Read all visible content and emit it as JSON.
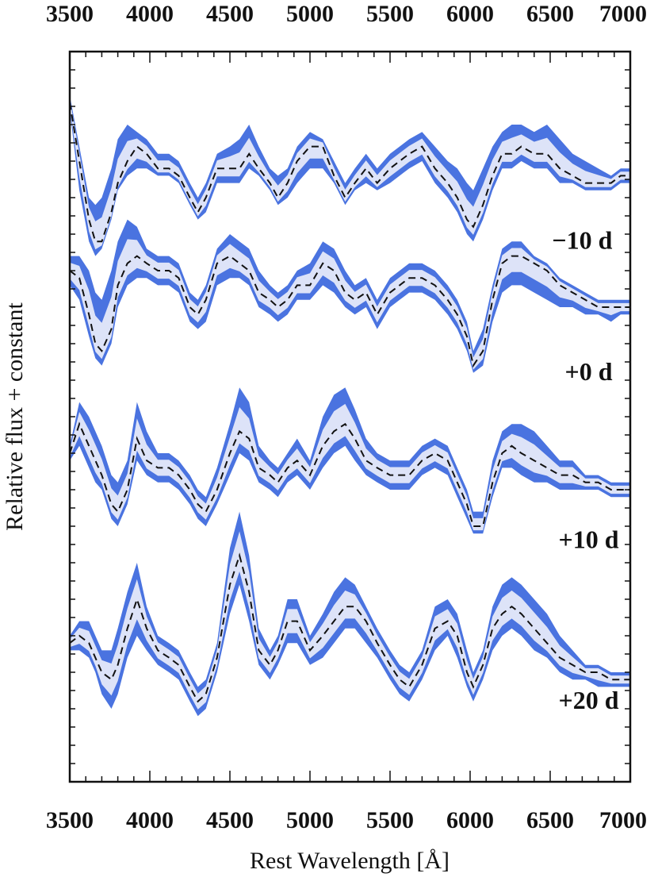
{
  "chart_data": {
    "type": "line",
    "xlabel": "Rest Wavelength  [Å]",
    "ylabel": "Relative flux + constant",
    "xlim": [
      3500,
      7000
    ],
    "ylim": [
      0,
      100
    ],
    "x_ticks": [
      "3500",
      "4000",
      "4500",
      "5000",
      "5500",
      "6000",
      "6500",
      "7000"
    ],
    "x_minor_step": 100,
    "y_minor_step": 2.5,
    "colors": {
      "band_outer": "#4a73e0",
      "band_inner": "#dde3f8",
      "mean_line": "#111111",
      "axes": "#111111"
    },
    "series": [
      {
        "name": "−10 d",
        "x": [
          3500,
          3560,
          3620,
          3660,
          3700,
          3760,
          3800,
          3860,
          3920,
          3980,
          4050,
          4120,
          4180,
          4250,
          4300,
          4350,
          4420,
          4500,
          4560,
          4620,
          4680,
          4750,
          4800,
          4860,
          4920,
          5000,
          5080,
          5150,
          5220,
          5280,
          5350,
          5420,
          5500,
          5560,
          5620,
          5700,
          5780,
          5860,
          5920,
          5980,
          6020,
          6080,
          6140,
          6200,
          6260,
          6320,
          6400,
          6480,
          6560,
          6640,
          6720,
          6800,
          6880,
          6940,
          7000
        ],
        "mean": [
          93,
          85,
          77,
          74,
          74,
          78,
          82,
          85,
          87,
          86,
          84,
          84,
          83,
          80,
          78,
          80,
          84,
          84,
          84,
          86,
          84,
          82,
          80,
          82,
          85,
          87,
          87,
          83,
          80,
          82,
          84,
          82,
          84,
          85,
          86,
          87,
          84,
          82,
          80,
          77,
          76,
          79,
          83,
          86,
          86,
          87,
          86,
          86,
          84,
          83,
          82,
          82,
          82,
          83,
          83
        ],
        "lo": [
          92,
          81,
          74,
          72,
          73,
          77,
          81,
          83,
          84,
          84,
          83,
          83,
          82,
          79,
          77,
          78,
          82,
          82,
          82,
          84,
          83,
          81,
          79,
          80,
          82,
          84,
          84,
          82,
          79,
          81,
          82,
          81,
          82,
          83,
          84,
          85,
          82,
          80,
          78,
          75,
          74,
          77,
          81,
          84,
          84,
          85,
          84,
          84,
          82,
          82,
          81,
          81,
          81,
          82,
          82
        ],
        "hi": [
          94,
          87,
          80,
          79,
          80,
          84,
          88,
          90,
          89,
          88,
          86,
          86,
          85,
          82,
          80,
          82,
          86,
          87,
          88,
          90,
          87,
          84,
          83,
          84,
          87,
          89,
          88,
          85,
          82,
          84,
          86,
          84,
          86,
          87,
          88,
          89,
          87,
          85,
          84,
          82,
          81,
          84,
          87,
          89,
          90,
          90,
          89,
          90,
          88,
          86,
          85,
          84,
          83,
          84,
          84
        ]
      },
      {
        "name": "+0 d",
        "x": [
          3500,
          3560,
          3620,
          3660,
          3700,
          3760,
          3800,
          3860,
          3920,
          3980,
          4050,
          4120,
          4180,
          4250,
          4300,
          4350,
          4420,
          4500,
          4560,
          4620,
          4680,
          4750,
          4800,
          4860,
          4920,
          5000,
          5080,
          5150,
          5220,
          5280,
          5350,
          5420,
          5500,
          5560,
          5620,
          5700,
          5780,
          5860,
          5920,
          5980,
          6020,
          6080,
          6140,
          6200,
          6260,
          6320,
          6400,
          6480,
          6560,
          6640,
          6720,
          6800,
          6880,
          6940,
          7000
        ],
        "mean": [
          70,
          69,
          64,
          60,
          59,
          62,
          68,
          71,
          72,
          71,
          70,
          70,
          69,
          65,
          64,
          66,
          71,
          72,
          71,
          70,
          67,
          66,
          65,
          66,
          68,
          68,
          71,
          70,
          67,
          66,
          67,
          64,
          67,
          68,
          69,
          69,
          68,
          66,
          64,
          61,
          57,
          59,
          66,
          71,
          72,
          72,
          71,
          70,
          68,
          67,
          66,
          65,
          65,
          65,
          65
        ],
        "lo": [
          68,
          66,
          61,
          58,
          57,
          60,
          65,
          68,
          69,
          69,
          68,
          68,
          67,
          63,
          62,
          63,
          68,
          69,
          69,
          68,
          65,
          64,
          63,
          64,
          66,
          66,
          68,
          67,
          65,
          64,
          65,
          62,
          65,
          66,
          67,
          67,
          66,
          64,
          62,
          59,
          56,
          57,
          63,
          67,
          68,
          68,
          67,
          66,
          65,
          65,
          64,
          64,
          63,
          64,
          64
        ],
        "hi": [
          72,
          72,
          70,
          67,
          66,
          70,
          74,
          77,
          76,
          73,
          72,
          72,
          71,
          67,
          66,
          68,
          73,
          75,
          74,
          73,
          70,
          68,
          67,
          68,
          70,
          71,
          74,
          73,
          70,
          68,
          69,
          66,
          69,
          70,
          71,
          71,
          70,
          68,
          66,
          63,
          59,
          62,
          68,
          73,
          74,
          74,
          72,
          71,
          69,
          68,
          67,
          66,
          66,
          66,
          66
        ]
      },
      {
        "name": "+10 d",
        "x": [
          3500,
          3560,
          3620,
          3660,
          3700,
          3760,
          3800,
          3860,
          3920,
          3980,
          4050,
          4120,
          4180,
          4250,
          4300,
          4350,
          4420,
          4500,
          4560,
          4620,
          4680,
          4750,
          4800,
          4860,
          4920,
          5000,
          5080,
          5150,
          5220,
          5280,
          5350,
          5420,
          5500,
          5560,
          5620,
          5700,
          5780,
          5860,
          5920,
          5980,
          6020,
          6080,
          6140,
          6200,
          6260,
          6320,
          6400,
          6480,
          6560,
          6640,
          6720,
          6800,
          6880,
          6940,
          7000
        ],
        "mean": [
          45,
          49,
          46,
          44,
          42,
          38,
          37,
          40,
          47,
          44,
          43,
          43,
          42,
          40,
          38,
          37,
          40,
          45,
          48,
          47,
          43,
          42,
          41,
          43,
          44,
          42,
          46,
          48,
          49,
          47,
          44,
          43,
          42,
          42,
          42,
          44,
          45,
          44,
          41,
          38,
          35,
          35,
          41,
          45,
          46,
          45,
          44,
          43,
          42,
          42,
          41,
          41,
          40,
          40,
          40
        ],
        "lo": [
          44,
          46,
          43,
          41,
          40,
          36,
          35,
          38,
          44,
          42,
          41,
          41,
          40,
          38,
          36,
          35,
          38,
          42,
          45,
          44,
          41,
          40,
          39,
          41,
          42,
          40,
          43,
          45,
          46,
          44,
          42,
          41,
          40,
          40,
          40,
          42,
          43,
          42,
          39,
          36,
          34,
          34,
          39,
          43,
          43,
          42,
          41,
          41,
          40,
          40,
          40,
          40,
          39,
          39,
          39
        ],
        "hi": [
          46,
          52,
          50,
          48,
          46,
          42,
          41,
          44,
          52,
          48,
          45,
          45,
          44,
          42,
          40,
          39,
          43,
          49,
          54,
          52,
          46,
          44,
          43,
          45,
          47,
          44,
          50,
          53,
          54,
          51,
          47,
          45,
          44,
          44,
          44,
          46,
          47,
          46,
          43,
          40,
          37,
          37,
          44,
          48,
          49,
          49,
          48,
          46,
          44,
          44,
          42,
          42,
          41,
          41,
          41
        ]
      },
      {
        "name": "+20 d",
        "x": [
          3500,
          3560,
          3620,
          3660,
          3700,
          3760,
          3800,
          3860,
          3920,
          3980,
          4050,
          4120,
          4180,
          4250,
          4300,
          4350,
          4420,
          4500,
          4560,
          4620,
          4680,
          4750,
          4800,
          4860,
          4920,
          5000,
          5080,
          5150,
          5220,
          5280,
          5350,
          5420,
          5500,
          5560,
          5620,
          5700,
          5780,
          5860,
          5920,
          5980,
          6020,
          6080,
          6140,
          6200,
          6260,
          6320,
          6400,
          6480,
          6560,
          6640,
          6720,
          6800,
          6880,
          6940,
          7000
        ],
        "mean": [
          19,
          20,
          19,
          17,
          15,
          14,
          16,
          21,
          25,
          21,
          18,
          17,
          16,
          13,
          11,
          12,
          17,
          27,
          31,
          26,
          18,
          16,
          18,
          22,
          22,
          18,
          20,
          22,
          24,
          24,
          22,
          19,
          16,
          14,
          13,
          16,
          21,
          22,
          20,
          15,
          13,
          16,
          21,
          23,
          24,
          23,
          21,
          19,
          17,
          16,
          15,
          15,
          14,
          14,
          14
        ],
        "lo": [
          18,
          18,
          17,
          15,
          12,
          10,
          12,
          17,
          20,
          18,
          16,
          15,
          14,
          11,
          9,
          10,
          15,
          23,
          27,
          22,
          16,
          14,
          16,
          19,
          19,
          16,
          17,
          19,
          21,
          21,
          19,
          17,
          14,
          12,
          11,
          14,
          18,
          20,
          17,
          13,
          11,
          14,
          18,
          20,
          21,
          20,
          18,
          17,
          15,
          14,
          14,
          13,
          13,
          13,
          13
        ],
        "hi": [
          20,
          22,
          22,
          20,
          18,
          18,
          21,
          26,
          30,
          24,
          20,
          19,
          18,
          15,
          13,
          14,
          19,
          32,
          37,
          31,
          21,
          18,
          20,
          25,
          25,
          20,
          23,
          26,
          28,
          27,
          24,
          21,
          18,
          16,
          15,
          18,
          24,
          25,
          23,
          18,
          15,
          18,
          24,
          27,
          28,
          27,
          25,
          23,
          20,
          18,
          16,
          16,
          15,
          15,
          15
        ]
      }
    ],
    "label_positions_wavelength": [
      6700,
      6740,
      6740,
      6740
    ],
    "label_offsets_data": [
      -8,
      -8,
      -7,
      -8
    ]
  }
}
